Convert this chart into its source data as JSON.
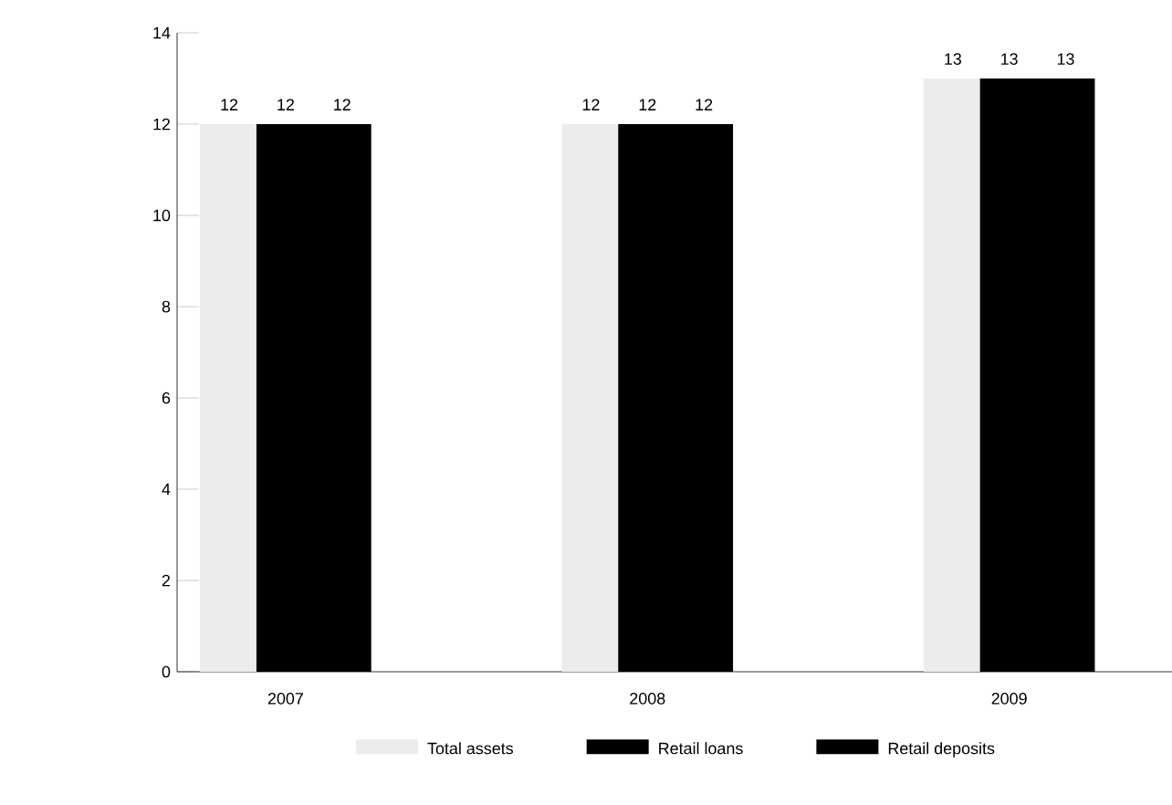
{
  "chart_data": {
    "type": "bar",
    "categories": [
      "2007",
      "2008",
      "2009"
    ],
    "series": [
      {
        "name": "Total assets",
        "color": "#ececec",
        "values": [
          12,
          12,
          13
        ]
      },
      {
        "name": "Retail loans",
        "color": "#000000",
        "values": [
          12,
          12,
          13
        ]
      },
      {
        "name": "Retail deposits",
        "color": "#000000",
        "values": [
          12,
          12,
          13
        ]
      }
    ],
    "ylim": [
      0,
      14
    ],
    "yticks": [
      0,
      2,
      4,
      6,
      8,
      10,
      12,
      14
    ],
    "data_labels": true,
    "legend": "bottom",
    "grid": false
  }
}
